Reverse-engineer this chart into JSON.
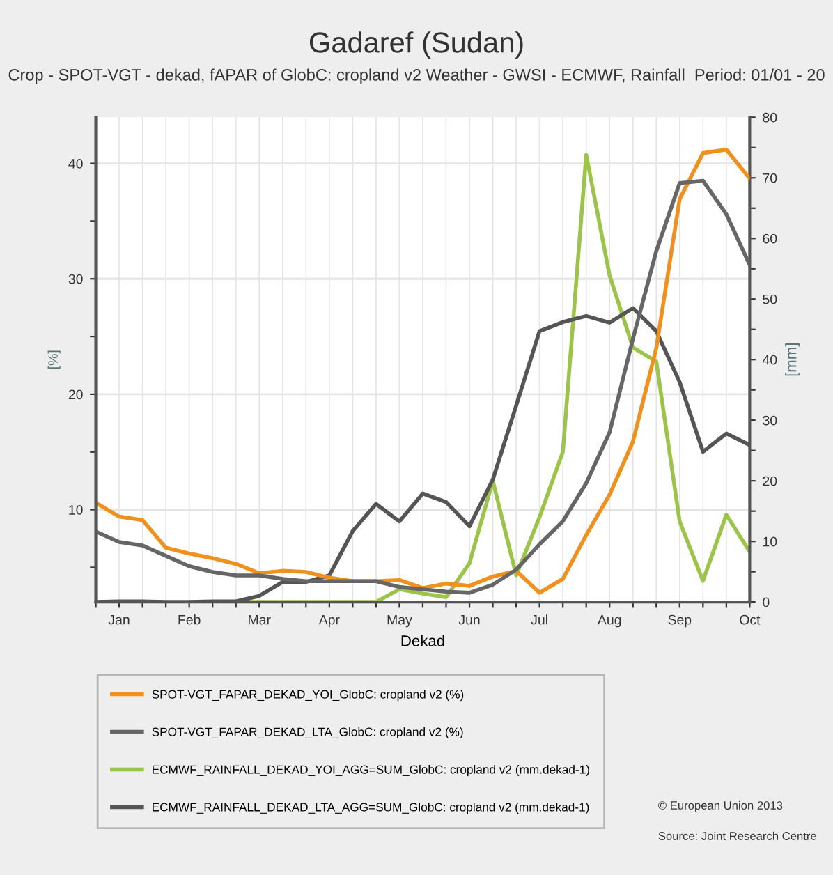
{
  "chart_data": {
    "type": "line",
    "title": "Gadaref (Sudan)",
    "subtitle": "Crop - SPOT-VGT - dekad, fAPAR of GlobC: cropland v2 Weather - GWSI - ECMWF, Rainfall  Period: 01/01 - 20",
    "xlabel": "Dekad",
    "ylabel": "[%]",
    "y2label": "[mm]",
    "categories": [
      null,
      "Jan",
      null,
      null,
      "Feb",
      null,
      null,
      "Mar",
      null,
      null,
      "Apr",
      null,
      null,
      "May",
      null,
      null,
      "Jun",
      null,
      null,
      "Jul",
      null,
      null,
      "Aug",
      null,
      null,
      "Sep",
      null,
      null,
      "Oct"
    ],
    "series": [
      {
        "name": "SPOT-VGT_FAPAR_DEKAD_YOI_GlobC: cropland v2 (%)",
        "color": "#f0901e",
        "values": [
          10.6,
          9.4,
          9.1,
          6.7,
          6.2,
          5.8,
          5.3,
          4.5,
          4.7,
          4.6,
          4.1,
          3.8,
          3.8,
          3.9,
          3.2,
          3.6,
          3.4,
          4.2,
          4.7,
          2.8,
          4.0,
          7.8,
          11.3,
          15.9,
          24.0,
          36.9,
          40.9,
          41.2,
          38.7
        ]
      },
      {
        "name": "SPOT-VGT_FAPAR_DEKAD_LTA_GlobC: cropland v2 (%)",
        "color": "#666666",
        "values": [
          8.1,
          7.2,
          6.9,
          6.0,
          5.1,
          4.6,
          4.3,
          4.3,
          4.0,
          3.8,
          3.8,
          3.8,
          3.8,
          3.3,
          3.1,
          2.9,
          2.8,
          3.5,
          4.8,
          7.0,
          9.0,
          12.3,
          16.7,
          24.8,
          32.4,
          38.3,
          38.5,
          35.6,
          31.2
        ]
      },
      {
        "name": "ECMWF_RAINFALL_DEKAD_YOI_AGG=SUM_GlobC: cropland v2 (mm.dekad-1)",
        "color": "#9cc44a",
        "axis": "y2",
        "values": [
          null,
          null,
          null,
          null,
          null,
          null,
          0,
          0,
          0,
          0,
          0,
          0,
          0,
          2.1,
          1.4,
          0.8,
          6.4,
          20.0,
          4.4,
          14.0,
          24.8,
          73.8,
          53.9,
          42.0,
          39.7,
          13.3,
          3.5,
          14.4,
          8.3
        ]
      },
      {
        "name": "ECMWF_RAINFALL_DEKAD_LTA_AGG=SUM_GlobC: cropland v2 (mm.dekad-1)",
        "color": "#555555",
        "axis": "y2",
        "values": [
          0,
          0.1,
          0.1,
          0,
          0,
          0.1,
          0.1,
          1.0,
          3.3,
          3.3,
          4.4,
          11.7,
          16.2,
          13.3,
          17.9,
          16.5,
          12.5,
          20.2,
          32.4,
          44.7,
          46.2,
          47.2,
          46.1,
          48.5,
          44.7,
          36.3,
          24.8,
          27.8,
          25.9
        ]
      }
    ],
    "ylim": [
      2,
      44
    ],
    "yticks": [
      {
        "value": 5,
        "label": null
      },
      10,
      {
        "value": 15,
        "label": null
      },
      20,
      {
        "value": 25,
        "label": null
      },
      30,
      {
        "value": 35,
        "label": null
      },
      40
    ],
    "y2lim": [
      0,
      80
    ],
    "y2ticks": [
      0,
      {
        "value": 5,
        "label": null
      },
      10,
      {
        "value": 15,
        "label": null
      },
      20,
      {
        "value": 25,
        "label": null
      },
      30,
      {
        "value": 35,
        "label": null
      },
      40,
      {
        "value": 45,
        "label": null
      },
      50,
      {
        "value": 55,
        "label": null
      },
      60,
      {
        "value": 65,
        "label": null
      },
      70,
      {
        "value": 75,
        "label": null
      },
      80
    ],
    "grid": true,
    "legend": "bottom",
    "marker": "none",
    "line_style": "solid",
    "annotations": [
      "© European Union 2013",
      "Source: Joint Research Centre"
    ]
  }
}
